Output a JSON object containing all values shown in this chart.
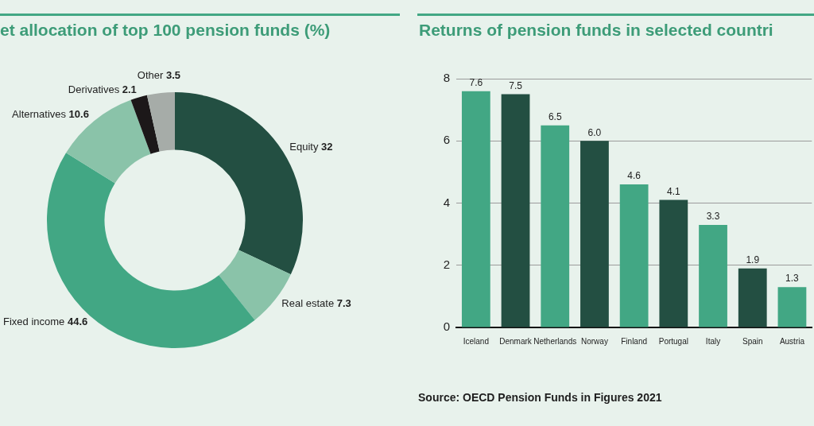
{
  "chart_data": [
    {
      "type": "donut",
      "title": "et allocation of top 100 pension funds (%)",
      "categories": [
        "Equity",
        "Real estate",
        "Fixed income",
        "Alternatives",
        "Derivatives",
        "Other"
      ],
      "values": [
        32,
        7.3,
        44.6,
        10.6,
        2.1,
        3.5
      ],
      "colors": [
        "#234f42",
        "#8ac3a9",
        "#42a784",
        "#8ac3a9",
        "#1c1819",
        "#a6aca8"
      ],
      "data_labels": true
    },
    {
      "type": "bar",
      "title": "Returns of pension funds in selected countri",
      "categories": [
        "Iceland",
        "Denmark",
        "Netherlands",
        "Norway",
        "Finland",
        "Portugal",
        "Italy",
        "Spain",
        "Austria"
      ],
      "values": [
        7.6,
        7.5,
        6.5,
        6.0,
        4.6,
        4.1,
        3.3,
        1.9,
        1.3
      ],
      "colors": [
        "#42a784",
        "#234f42",
        "#42a784",
        "#234f42",
        "#42a784",
        "#234f42",
        "#42a784",
        "#234f42",
        "#42a784"
      ],
      "value_labels": [
        "7.6",
        "7.5",
        "6.5",
        "6.0",
        "4.6",
        "4.1",
        "3.3",
        "1.9",
        "1.3"
      ],
      "ylim": [
        0,
        8
      ],
      "yticks": [
        0,
        2,
        4,
        6,
        8
      ],
      "grid": "y",
      "annotations": [
        "Source: OECD Pension Funds in Figures 2021"
      ]
    }
  ]
}
